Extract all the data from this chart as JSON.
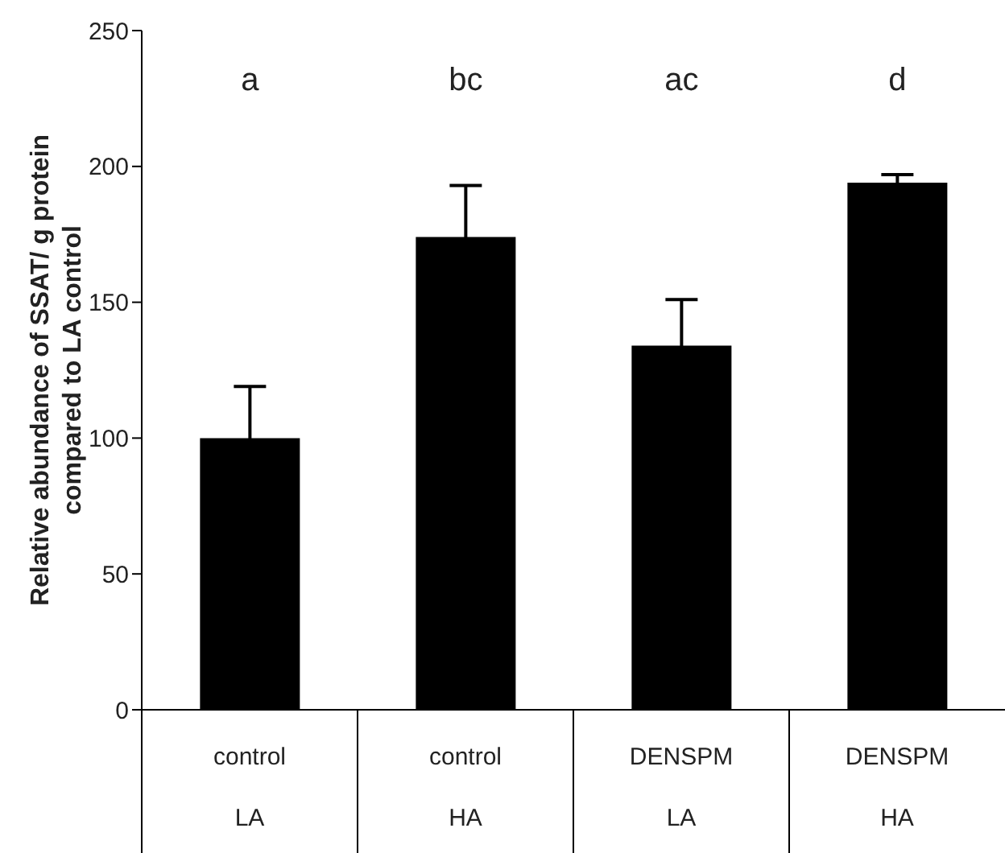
{
  "chart_data": {
    "type": "bar",
    "ylabel": "Relative abundance of SSAT/ g protein\ncompared to LA control",
    "categories": [
      "control\nLA",
      "control\nHA",
      "DENSPM\nLA",
      "DENSPM\nHA"
    ],
    "values": [
      100,
      174,
      134,
      194
    ],
    "errors": [
      19,
      19,
      17,
      3
    ],
    "color": "#000000",
    "ylim": [
      0,
      250
    ],
    "yticks": [
      0,
      50,
      100,
      150,
      200,
      250
    ],
    "annotations": [
      "a",
      "bc",
      "ac",
      "d"
    ],
    "grid": false,
    "legend": false
  }
}
